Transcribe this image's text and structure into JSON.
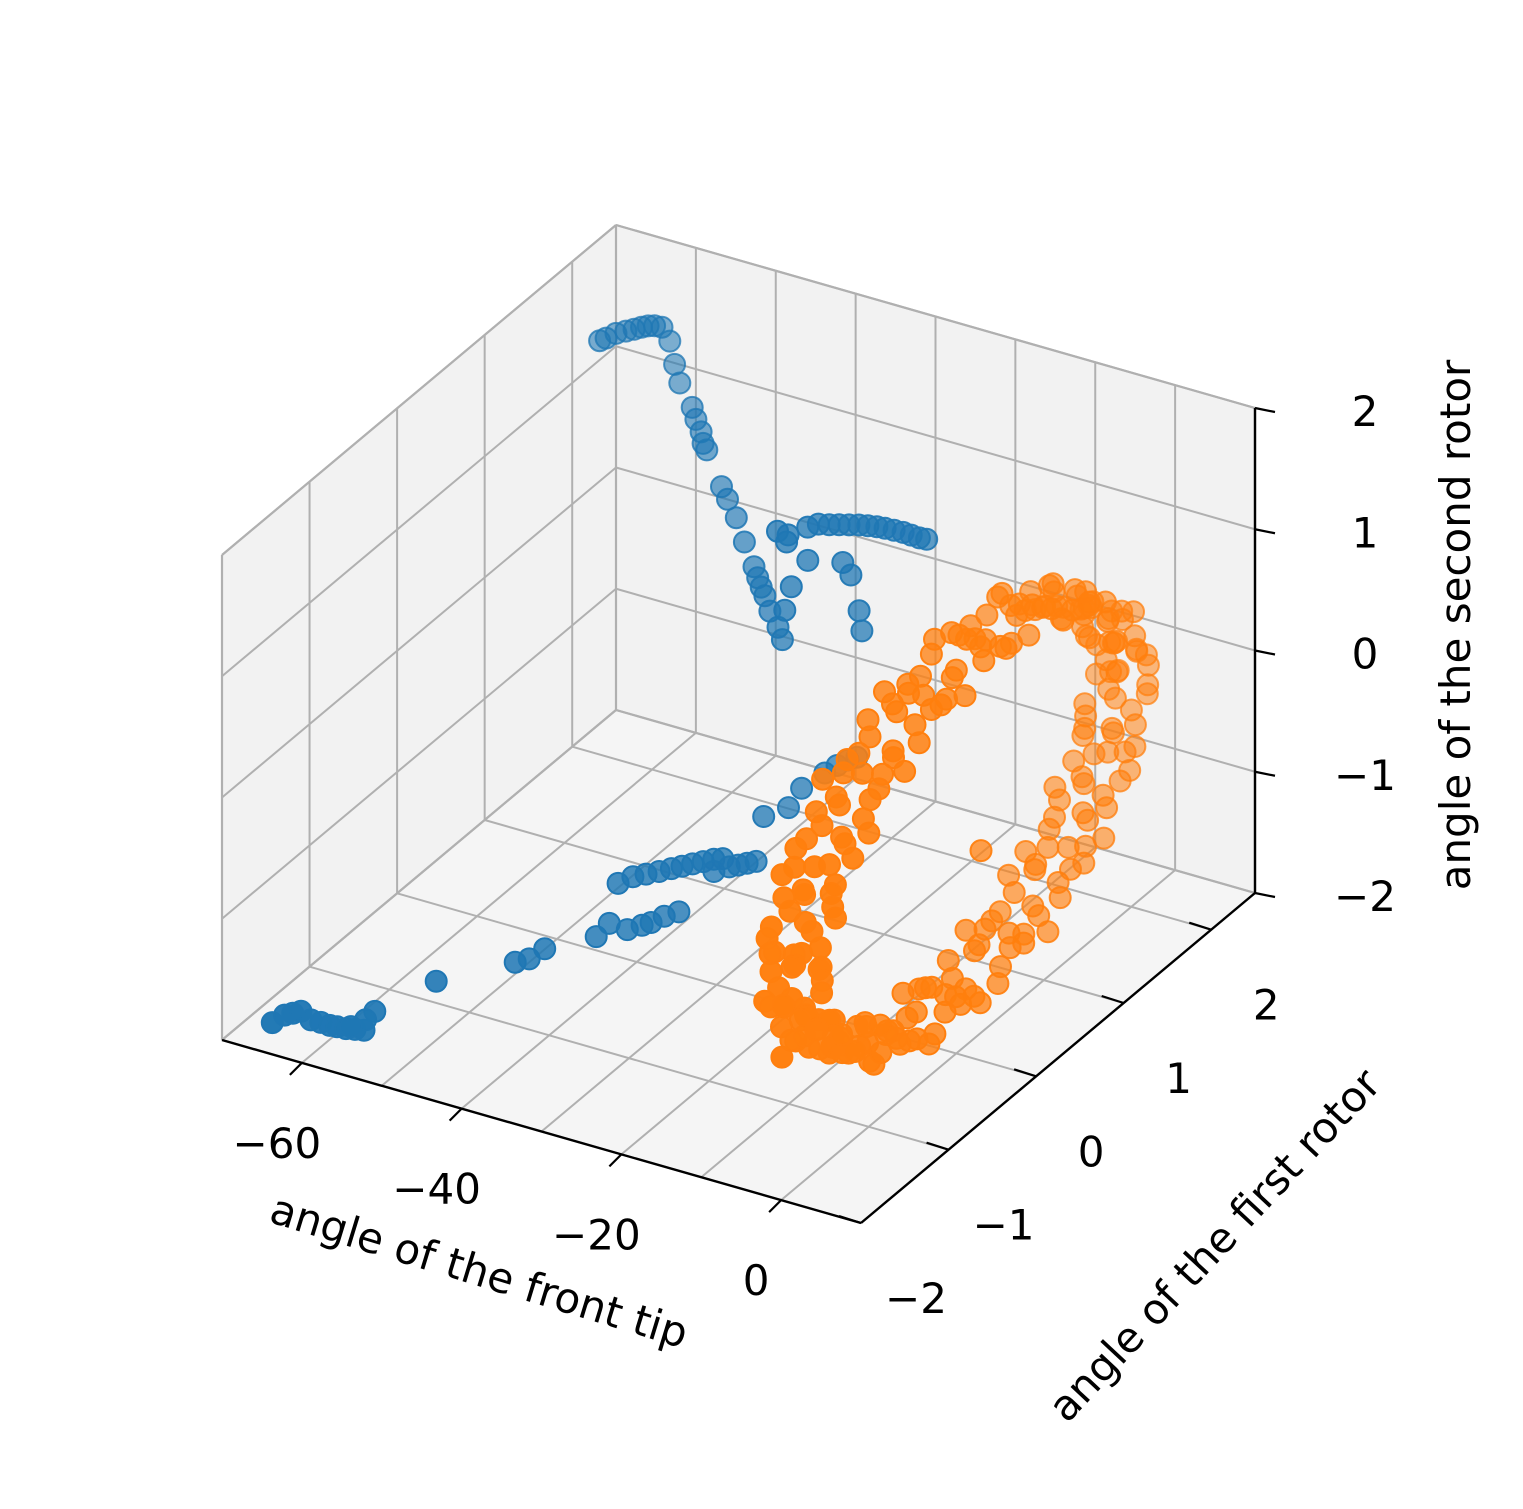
{
  "chart_data": {
    "type": "scatter",
    "projection": "3d",
    "title": "",
    "xlabel": "angle of the front tip",
    "ylabel": "angle of the first rotor",
    "zlabel": "angle of the second rotor",
    "xlim": [
      -70,
      10
    ],
    "ylim": [
      -2,
      2.5
    ],
    "zlim": [
      -2,
      2
    ],
    "grid": true,
    "x_ticks": [
      "−60",
      "−40",
      "−20",
      "0"
    ],
    "y_ticks": [
      "−2",
      "−1",
      "0",
      "1",
      "2"
    ],
    "z_ticks": [
      "−2",
      "−1",
      "0",
      "1",
      "2"
    ],
    "pane_colors": {
      "left": "#f2f2f2",
      "back": "#f2f2f2",
      "floor": "#f5f5f5"
    },
    "grid_color": "#b0b0b0",
    "series": [
      {
        "color": "#1f77b4",
        "points": [
          [
            -65.9,
            -1.8,
            -1.9
          ],
          [
            -64.9,
            -1.75,
            -1.85
          ],
          [
            -64.2,
            -1.72,
            -1.84
          ],
          [
            -63.4,
            -1.7,
            -1.82
          ],
          [
            -62.6,
            -1.66,
            -1.9
          ],
          [
            -61.8,
            -1.62,
            -1.93
          ],
          [
            -60.9,
            -1.6,
            -1.95
          ],
          [
            -60.2,
            -1.58,
            -1.96
          ],
          [
            -59.3,
            -1.56,
            -1.97
          ],
          [
            -58.5,
            -1.53,
            -1.98
          ],
          [
            -57.7,
            -1.5,
            -1.99
          ],
          [
            -56.9,
            -1.45,
            -1.85
          ],
          [
            -57.5,
            -1.5,
            -1.9
          ],
          [
            -58.8,
            -1.55,
            -1.95
          ],
          [
            -60,
            1.4,
            1.9
          ],
          [
            -59.4,
            1.42,
            1.92
          ],
          [
            -58.6,
            1.46,
            1.95
          ],
          [
            -57.8,
            1.5,
            1.96
          ],
          [
            -57.1,
            1.53,
            1.97
          ],
          [
            -56.5,
            1.56,
            1.98
          ],
          [
            -55.9,
            1.58,
            1.99
          ],
          [
            -55.3,
            1.6,
            1.99
          ],
          [
            -54.6,
            1.62,
            1.98
          ],
          [
            -53.4,
            1.6,
            1.9
          ],
          [
            -51.7,
            1.5,
            1.8
          ],
          [
            -50.5,
            1.45,
            1.7
          ],
          [
            -47.3,
            1.3,
            1.65
          ],
          [
            -46.3,
            1.25,
            1.6
          ],
          [
            -45.1,
            1.2,
            1.55
          ],
          [
            -44.3,
            1.15,
            1.5
          ],
          [
            -43.5,
            1.12,
            1.48
          ],
          [
            -39.8,
            0.95,
            1.35
          ],
          [
            -38.5,
            0.9,
            1.3
          ],
          [
            -36.3,
            0.8,
            1.25
          ],
          [
            -34.2,
            0.7,
            1.15
          ],
          [
            -31.9,
            0.6,
            1.05
          ],
          [
            -31.0,
            0.56,
            1.0
          ],
          [
            -29.9,
            0.5,
            0.98
          ],
          [
            -29.0,
            0.46,
            0.95
          ],
          [
            -27.5,
            0.38,
            0.9
          ],
          [
            -25.6,
            0.3,
            0.85
          ],
          [
            -24.5,
            0.25,
            0.8
          ],
          [
            -18.6,
            0,
            1.99
          ],
          [
            -17.8,
            0.05,
            2.0
          ],
          [
            -17.0,
            0.1,
            1.98
          ],
          [
            -16.2,
            0.14,
            1.97
          ],
          [
            -15.4,
            0.18,
            1.96
          ],
          [
            -14.6,
            0.22,
            1.95
          ],
          [
            -13.8,
            0.25,
            1.94
          ],
          [
            -13.0,
            0.28,
            1.93
          ],
          [
            -12.2,
            0.3,
            1.92
          ],
          [
            -11.4,
            0.33,
            1.9
          ],
          [
            -10.6,
            0.36,
            1.88
          ],
          [
            -9.8,
            0.38,
            1.86
          ],
          [
            -9.0,
            0.4,
            1.84
          ],
          [
            -8.3,
            0.42,
            1.83
          ],
          [
            -20.5,
            -0.05,
            1.92
          ],
          [
            -18.8,
            0.02,
            1.7
          ],
          [
            -15.3,
            0.1,
            1.7
          ],
          [
            -14.5,
            0.12,
            1.6
          ],
          [
            -20.1,
            -0.05,
            1.5
          ],
          [
            -20.8,
            -0.06,
            1.3
          ],
          [
            -13.8,
            0.15,
            1.3
          ],
          [
            -14.0,
            0.2,
            1.1
          ],
          [
            -21.5,
            -0.08,
            1.95
          ],
          [
            -20.8,
            -0.04,
            1.85
          ],
          [
            -52.5,
            -1.15,
            -1.7
          ],
          [
            -45.9,
            -0.85,
            -1.6
          ],
          [
            -44.7,
            -0.8,
            -1.58
          ],
          [
            -43.3,
            -0.75,
            -1.5
          ],
          [
            -38.5,
            -0.6,
            -1.4
          ],
          [
            -37.4,
            -0.55,
            -1.3
          ],
          [
            -35.7,
            -0.5,
            -1.35
          ],
          [
            -34.4,
            -0.45,
            -1.32
          ],
          [
            -33.6,
            -0.42,
            -1.3
          ],
          [
            -32.4,
            -0.38,
            -1.25
          ],
          [
            -31.1,
            -0.33,
            -1.22
          ],
          [
            -36.3,
            -0.55,
            -0.95
          ],
          [
            -35.0,
            -0.5,
            -0.9
          ],
          [
            -33.8,
            -0.46,
            -0.88
          ],
          [
            -32.6,
            -0.42,
            -0.86
          ],
          [
            -31.5,
            -0.38,
            -0.84
          ],
          [
            -30.5,
            -0.35,
            -0.82
          ],
          [
            -29.5,
            -0.32,
            -0.8
          ],
          [
            -28.5,
            -0.29,
            -0.78
          ],
          [
            -27.5,
            -0.26,
            -0.76
          ],
          [
            -26.6,
            -0.24,
            -0.75
          ],
          [
            -28.7,
            -0.15,
            -0.95
          ],
          [
            -27.1,
            -0.12,
            -0.9
          ],
          [
            -26.2,
            -0.1,
            -0.88
          ],
          [
            -25.3,
            -0.08,
            -0.86
          ],
          [
            -24.4,
            -0.06,
            -0.84
          ],
          [
            -24.1,
            0,
            -0.5
          ],
          [
            -22.1,
            0.1,
            -0.45
          ],
          [
            -21.0,
            0.15,
            -0.3
          ],
          [
            -19.2,
            0.25,
            -0.2
          ],
          [
            -18.2,
            0.3,
            -0.15
          ],
          [
            -17.4,
            0.35,
            -0.12
          ],
          [
            -16.6,
            0.38,
            -0.1
          ]
        ]
      },
      {
        "color": "#ff7f0e",
        "ring": {
          "center": [
            0,
            0,
            -0.1
          ],
          "radius_y": 1.85,
          "radius_z": 1.35,
          "tilt": 0.35,
          "count": 260
        },
        "points": [
          [
            -1.0,
            -1.9,
            -0.9
          ],
          [
            2.0,
            0.1,
            -0.35
          ]
        ]
      }
    ]
  }
}
